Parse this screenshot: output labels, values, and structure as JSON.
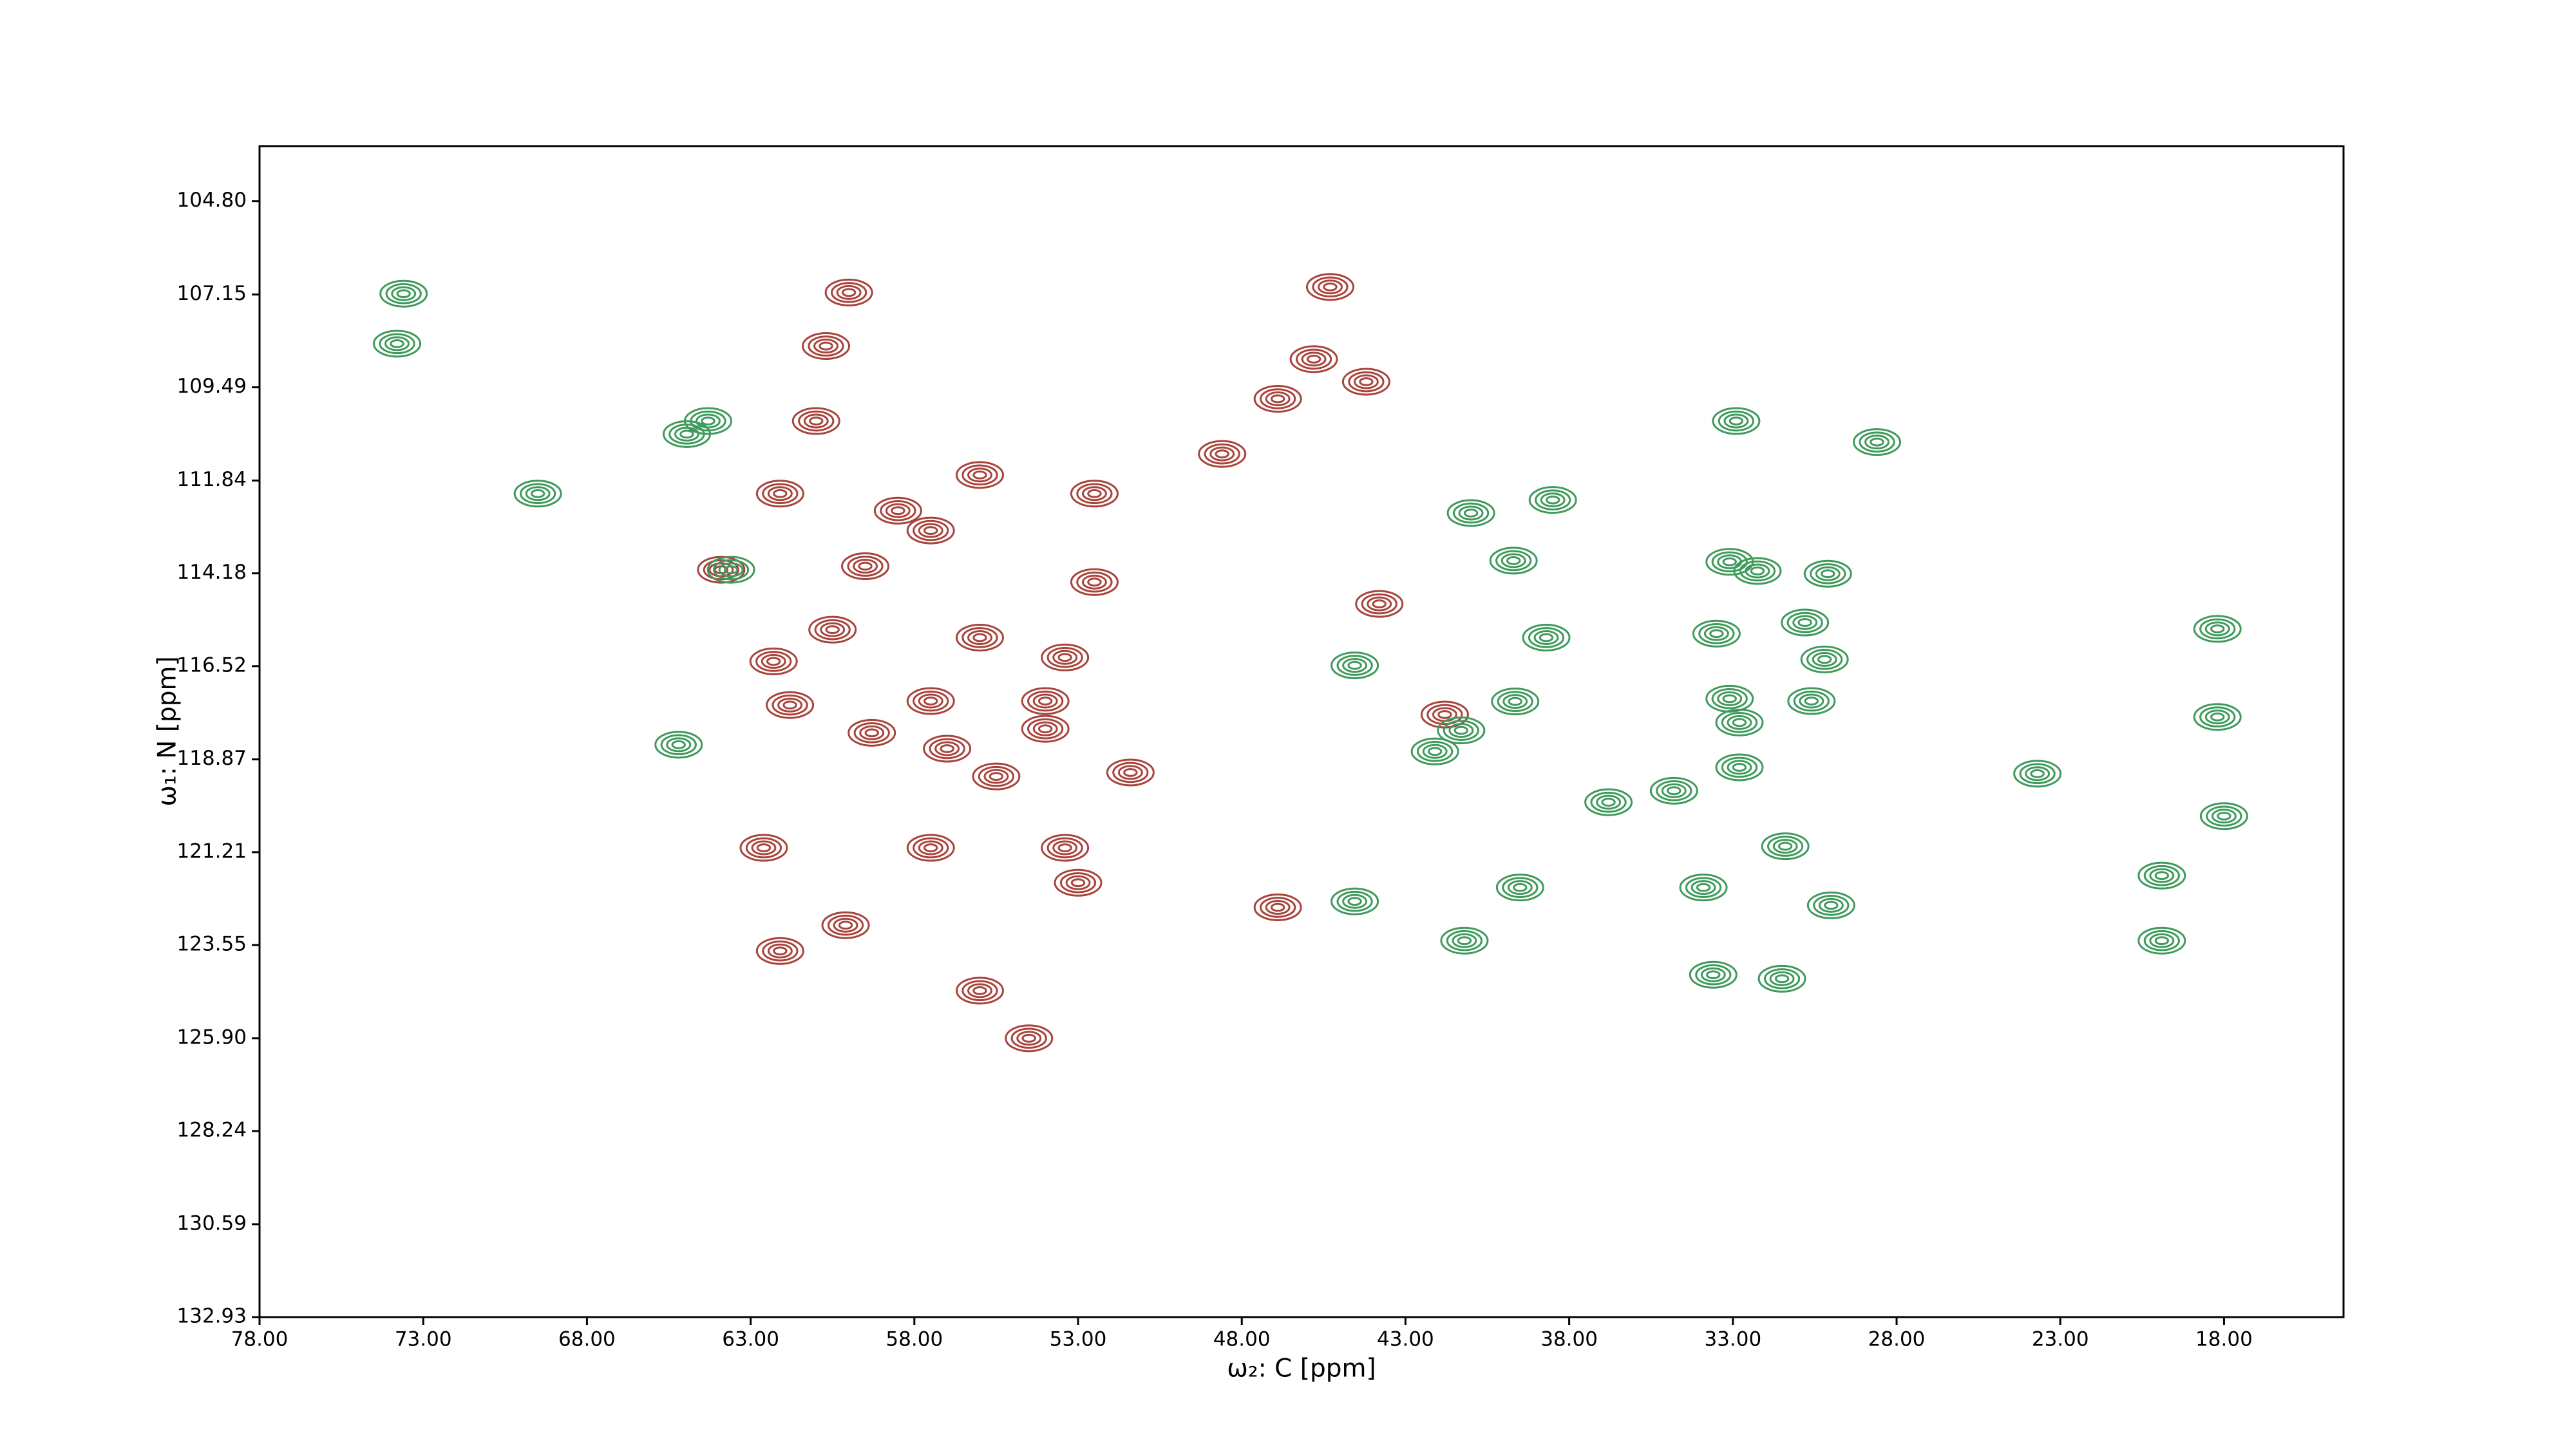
{
  "chart_data": {
    "type": "contour",
    "x_label": "ω₂: C [ppm]",
    "y_label": "ω₁: N [ppm]",
    "xlim": [
      78,
      14.35
    ],
    "ylim": [
      132.93,
      103.41
    ],
    "xticks": [
      {
        "value": 78,
        "label": "78.00"
      },
      {
        "value": 73,
        "label": "73.00"
      },
      {
        "value": 68,
        "label": "68.00"
      },
      {
        "value": 63,
        "label": "63.00"
      },
      {
        "value": 58,
        "label": "58.00"
      },
      {
        "value": 53,
        "label": "53.00"
      },
      {
        "value": 48,
        "label": "48.00"
      },
      {
        "value": 43,
        "label": "43.00"
      },
      {
        "value": 38,
        "label": "38.00"
      },
      {
        "value": 33,
        "label": "33.00"
      },
      {
        "value": 28,
        "label": "28.00"
      },
      {
        "value": 23,
        "label": "23.00"
      },
      {
        "value": 18,
        "label": "18.00"
      }
    ],
    "yticks": [
      {
        "value": 104.8,
        "label": "104.80"
      },
      {
        "value": 107.15,
        "label": "107.15"
      },
      {
        "value": 109.49,
        "label": "109.49"
      },
      {
        "value": 111.84,
        "label": "111.84"
      },
      {
        "value": 114.18,
        "label": "114.18"
      },
      {
        "value": 116.52,
        "label": "116.52"
      },
      {
        "value": 118.87,
        "label": "118.87"
      },
      {
        "value": 121.21,
        "label": "121.21"
      },
      {
        "value": 123.55,
        "label": "123.55"
      },
      {
        "value": 125.9,
        "label": "125.90"
      },
      {
        "value": 128.24,
        "label": "128.24"
      },
      {
        "value": 130.59,
        "label": "130.59"
      },
      {
        "value": 132.93,
        "label": "132.93"
      }
    ],
    "series": [
      {
        "color": "#a8443c",
        "x": [
          45.3,
          45.8,
          44.2,
          46.9,
          61.0,
          58.5,
          62.1,
          56.0,
          52.5,
          57.5,
          59.5,
          52.5,
          62.3,
          60.5,
          56.0,
          53.4,
          57.5,
          54.0,
          61.8,
          59.3,
          57.0,
          54.0,
          55.5,
          57.5,
          62.6,
          53.4,
          51.4,
          48.6,
          63.9,
          60.0,
          60.7,
          56.0,
          54.5,
          60.1,
          62.1,
          53.0,
          43.8,
          41.8,
          46.9
        ],
        "y": [
          106.96,
          108.78,
          109.35,
          109.78,
          110.34,
          112.6,
          112.17,
          111.7,
          112.17,
          113.1,
          114.0,
          114.4,
          116.4,
          115.6,
          115.8,
          116.3,
          117.4,
          117.4,
          117.5,
          118.2,
          118.6,
          118.1,
          119.3,
          121.1,
          121.1,
          121.1,
          119.2,
          111.17,
          114.09,
          107.1,
          108.45,
          124.7,
          125.9,
          123.05,
          123.7,
          121.98,
          114.95,
          117.74,
          122.6
        ]
      },
      {
        "color": "#3f9a5c",
        "x": [
          64.3,
          64.95,
          63.6,
          73.6,
          73.8,
          69.5,
          65.2,
          44.55,
          41.0,
          38.5,
          39.7,
          32.9,
          28.6,
          33.1,
          32.25,
          30.1,
          30.8,
          30.2,
          33.5,
          33.1,
          32.8,
          30.6,
          31.4,
          34.8,
          32.8,
          23.7,
          18.2,
          18.0,
          19.9,
          18.2,
          39.65,
          41.3,
          42.1,
          44.55,
          41.2,
          33.9,
          33.6,
          31.5,
          30.0,
          19.9,
          38.7,
          36.8,
          39.5
        ],
        "y": [
          110.34,
          110.67,
          114.09,
          107.13,
          108.39,
          112.17,
          118.5,
          116.5,
          112.66,
          112.33,
          113.86,
          110.34,
          110.87,
          113.89,
          114.12,
          114.19,
          115.42,
          116.35,
          115.7,
          117.34,
          117.94,
          117.4,
          121.06,
          119.66,
          119.07,
          119.23,
          115.58,
          120.3,
          121.8,
          117.8,
          117.41,
          118.14,
          118.67,
          122.45,
          123.44,
          122.1,
          124.3,
          124.4,
          122.55,
          123.44,
          115.8,
          119.95,
          122.1
        ]
      }
    ]
  }
}
